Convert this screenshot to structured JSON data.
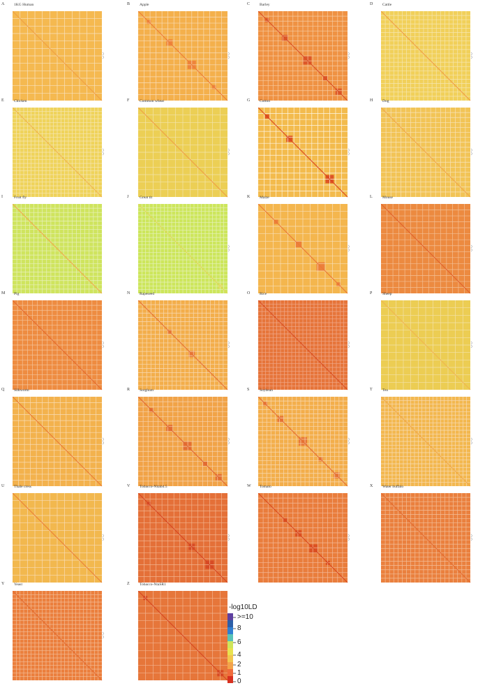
{
  "colors": {
    "scale": [
      "#d7301f",
      "#f06b3b",
      "#f3a34a",
      "#f2c64d",
      "#e9e24f",
      "#cfe55a",
      "#58c3b7",
      "#2f7fd2",
      "#2c5fa8",
      "#5e40a0"
    ]
  },
  "chart_data": [
    {
      "type": "heatmap",
      "panel": "A",
      "title": "1KG Human",
      "base": "#f5b950",
      "grid": "#f8e2c0",
      "diag": "#ef9f45",
      "blocks": [],
      "tick_marks": true
    },
    {
      "type": "heatmap",
      "panel": "B",
      "title": "Apple",
      "base": "#f4b04c",
      "grid": "#f8dcb8",
      "diag": "#ec7c38",
      "blocks": [
        0.12,
        0.35,
        0.6,
        0.85
      ],
      "tick_marks": true
    },
    {
      "type": "heatmap",
      "panel": "C",
      "title": "Barley",
      "base": "#ef9243",
      "grid": "#f7caa0",
      "diag": "#d94e25",
      "blocks": [
        0.1,
        0.3,
        0.55,
        0.75,
        0.9
      ],
      "tick_marks": true
    },
    {
      "type": "heatmap",
      "panel": "D",
      "title": "Cattle",
      "base": "#f1d05a",
      "grid": "#f6e6b0",
      "diag": "#ef9c45",
      "blocks": [],
      "tick_marks": true
    },
    {
      "type": "heatmap",
      "panel": "E",
      "title": "Chicken",
      "base": "#efd35b",
      "grid": "#f6e7b4",
      "diag": "#f0b451",
      "blocks": [],
      "tick_marks": true
    },
    {
      "type": "heatmap",
      "panel": "F",
      "title": "Common wheat",
      "base": "#eccf55",
      "grid": "#f3e4ad",
      "diag": "#ef9e45",
      "blocks": [],
      "tick_marks": true
    },
    {
      "type": "heatmap",
      "panel": "G",
      "title": "Cotton",
      "base": "#f3bb4d",
      "grid": "#fdf6e6",
      "diag": "#d9431f",
      "blocks": [
        0.1,
        0.35,
        0.8
      ],
      "tick_marks": true
    },
    {
      "type": "heatmap",
      "panel": "H",
      "title": "Dog",
      "base": "#f2c456",
      "grid": "#f7e3bb",
      "diag": "#f0a74a",
      "blocks": [],
      "tick_marks": true
    },
    {
      "type": "heatmap",
      "panel": "I",
      "title": "Fruit fly",
      "base": "#cfe45e",
      "grid": "#e8f1bd",
      "diag": "#f0a84a",
      "blocks": [],
      "tick_marks": false
    },
    {
      "type": "heatmap",
      "panel": "J",
      "title": "Great tit",
      "base": "#cde65c",
      "grid": "#e6f1bb",
      "diag": "#e0d85a",
      "blocks": [
        0.92
      ],
      "tick_marks": true
    },
    {
      "type": "heatmap",
      "panel": "K",
      "title": "Maize",
      "base": "#f4b64e",
      "grid": "#f8dfb8",
      "diag": "#ea7737",
      "blocks": [
        0.2,
        0.45,
        0.7,
        0.9
      ],
      "tick_marks": true
    },
    {
      "type": "heatmap",
      "panel": "L",
      "title": "Mouse",
      "base": "#ec8a40",
      "grid": "#f3bf95",
      "diag": "#e0612c",
      "blocks": [],
      "tick_marks": true
    },
    {
      "type": "heatmap",
      "panel": "M",
      "title": "Pig",
      "base": "#ee8c41",
      "grid": "#f4c39a",
      "diag": "#e36a30",
      "blocks": [],
      "tick_marks": true
    },
    {
      "type": "heatmap",
      "panel": "N",
      "title": "Rapeseed",
      "base": "#f3ae4b",
      "grid": "#f8d9b3",
      "diag": "#e56f34",
      "blocks": [
        0.35,
        0.6
      ],
      "tick_marks": true
    },
    {
      "type": "heatmap",
      "panel": "O",
      "title": "Rice",
      "base": "#e6753a",
      "grid": "#f0a98a",
      "diag": "#d94e25",
      "blocks": [],
      "tick_marks": true
    },
    {
      "type": "heatmap",
      "panel": "P",
      "title": "Sheep",
      "base": "#eccd53",
      "grid": "#f3e2aa",
      "diag": "#f0b550",
      "blocks": [],
      "tick_marks": true
    },
    {
      "type": "heatmap",
      "panel": "Q",
      "title": "Silkworm",
      "base": "#f3b24d",
      "grid": "#f8dcb6",
      "diag": "#e97a37",
      "blocks": [],
      "tick_marks": true
    },
    {
      "type": "heatmap",
      "panel": "R",
      "title": "Sorghum",
      "base": "#f1a347",
      "grid": "#f7d2ad",
      "diag": "#e16630",
      "blocks": [
        0.15,
        0.35,
        0.55,
        0.75,
        0.9
      ],
      "tick_marks": true
    },
    {
      "type": "heatmap",
      "panel": "S",
      "title": "Soybean",
      "base": "#f3ae4b",
      "grid": "#f8d9b3",
      "diag": "#e46c33",
      "blocks": [
        0.08,
        0.25,
        0.5,
        0.7,
        0.88
      ],
      "tick_marks": true
    },
    {
      "type": "heatmap",
      "panel": "T",
      "title": "Tea",
      "base": "#f3b84f",
      "grid": "#f7dcb6",
      "diag": "#f0a84a",
      "blocks": [],
      "tick_marks": true
    },
    {
      "type": "heatmap",
      "panel": "U",
      "title": "Thale cress",
      "base": "#f2b84e",
      "grid": "#f7dcb7",
      "diag": "#ea7f38",
      "blocks": [],
      "tick_marks": true
    },
    {
      "type": "heatmap",
      "panel": "V",
      "title": "Tobacco-Nitab4.5",
      "base": "#e47038",
      "grid": "#f2b38e",
      "diag": "#d54522",
      "blocks": [
        0.12,
        0.6,
        0.8
      ],
      "tick_marks": true
    },
    {
      "type": "heatmap",
      "panel": "W",
      "title": "Tomato",
      "base": "#e97d3c",
      "grid": "#f3b998",
      "diag": "#d9491f",
      "blocks": [
        0.3,
        0.45,
        0.62,
        0.78
      ],
      "tick_marks": true
    },
    {
      "type": "heatmap",
      "panel": "X",
      "title": "Water buffalo",
      "base": "#ea803e",
      "grid": "#f3be98",
      "diag": "#e36b31",
      "blocks": [],
      "tick_marks": true
    },
    {
      "type": "heatmap",
      "panel": "Y",
      "title": "Yeast",
      "base": "#eb7f3d",
      "grid": "#f3bd97",
      "diag": "#e36b31",
      "blocks": [],
      "tick_marks": true
    },
    {
      "type": "heatmap",
      "panel": "Z",
      "title": "Tobacco-NtaSR1",
      "base": "#e6763a",
      "grid": "#f2b48f",
      "diag": "#d54522",
      "blocks": [
        0.08,
        0.92
      ],
      "tick_marks": true
    }
  ],
  "legend": {
    "title": "-log10LD",
    "ticks": [
      {
        "label": ">=10",
        "value": 10
      },
      {
        "label": "8",
        "value": 8
      },
      {
        "label": "6",
        "value": 6
      },
      {
        "label": "4",
        "value": 4
      },
      {
        "label": "2",
        "value": 2
      },
      {
        "label": "1",
        "value": 1
      },
      {
        "label": "0",
        "value": 0
      }
    ]
  }
}
